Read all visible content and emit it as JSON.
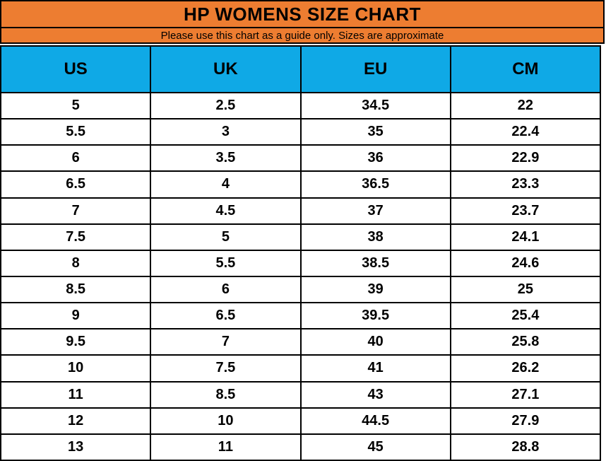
{
  "chart_data": {
    "type": "table",
    "title": "HP WOMENS SIZE CHART",
    "subtitle": "Please use this chart as a guide only. Sizes are approximate",
    "columns": [
      "US",
      "UK",
      "EU",
      "CM"
    ],
    "rows": [
      [
        "5",
        "2.5",
        "34.5",
        "22"
      ],
      [
        "5.5",
        "3",
        "35",
        "22.4"
      ],
      [
        "6",
        "3.5",
        "36",
        "22.9"
      ],
      [
        "6.5",
        "4",
        "36.5",
        "23.3"
      ],
      [
        "7",
        "4.5",
        "37",
        "23.7"
      ],
      [
        "7.5",
        "5",
        "38",
        "24.1"
      ],
      [
        "8",
        "5.5",
        "38.5",
        "24.6"
      ],
      [
        "8.5",
        "6",
        "39",
        "25"
      ],
      [
        "9",
        "6.5",
        "39.5",
        "25.4"
      ],
      [
        "9.5",
        "7",
        "40",
        "25.8"
      ],
      [
        "10",
        "7.5",
        "41",
        "26.2"
      ],
      [
        "11",
        "8.5",
        "43",
        "27.1"
      ],
      [
        "12",
        "10",
        "44.5",
        "27.9"
      ],
      [
        "13",
        "11",
        "45",
        "28.8"
      ]
    ],
    "layout": {
      "grid": "on",
      "legend": "none"
    }
  },
  "colors": {
    "title_bg": "#ED7D31",
    "header_bg": "#0FA9E6",
    "border": "#000000",
    "text": "#000000"
  }
}
